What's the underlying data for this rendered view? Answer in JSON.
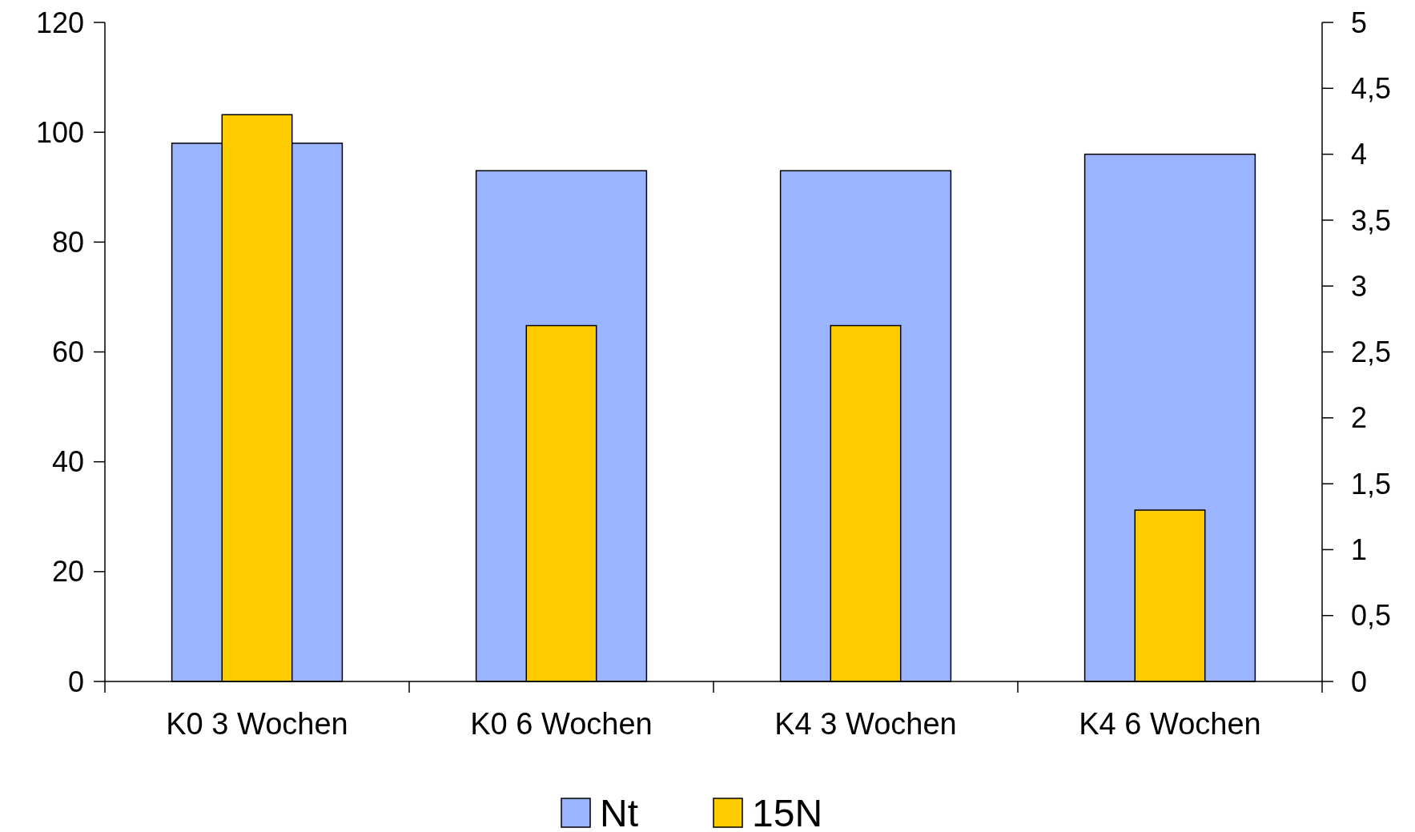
{
  "chart_data": {
    "type": "bar",
    "categories": [
      "K0 3 Wochen",
      "K0 6 Wochen",
      "K4 3 Wochen",
      "K4 6 Wochen"
    ],
    "series": [
      {
        "name": "Nt",
        "color": "#9bb4ff",
        "values": [
          98,
          93,
          93,
          96
        ]
      },
      {
        "name": "15N",
        "color": "#ffcc00",
        "values": [
          4.3,
          2.7,
          2.7,
          1.3
        ],
        "axis": "y2"
      }
    ],
    "ylim": [
      0,
      120
    ],
    "yticks": [
      0,
      20,
      40,
      60,
      80,
      100,
      120
    ],
    "y2lim": [
      0,
      5
    ],
    "y2ticks": [
      0,
      {
        "value": 0.5,
        "label": "0,5"
      },
      1,
      {
        "value": 1.5,
        "label": "1,5"
      },
      2,
      {
        "value": 2.5,
        "label": "2,5"
      },
      3,
      {
        "value": 3.5,
        "label": "3,5"
      },
      4,
      {
        "value": 4.5,
        "label": "4,5"
      },
      5
    ],
    "legend": "bottom",
    "grid": false
  }
}
